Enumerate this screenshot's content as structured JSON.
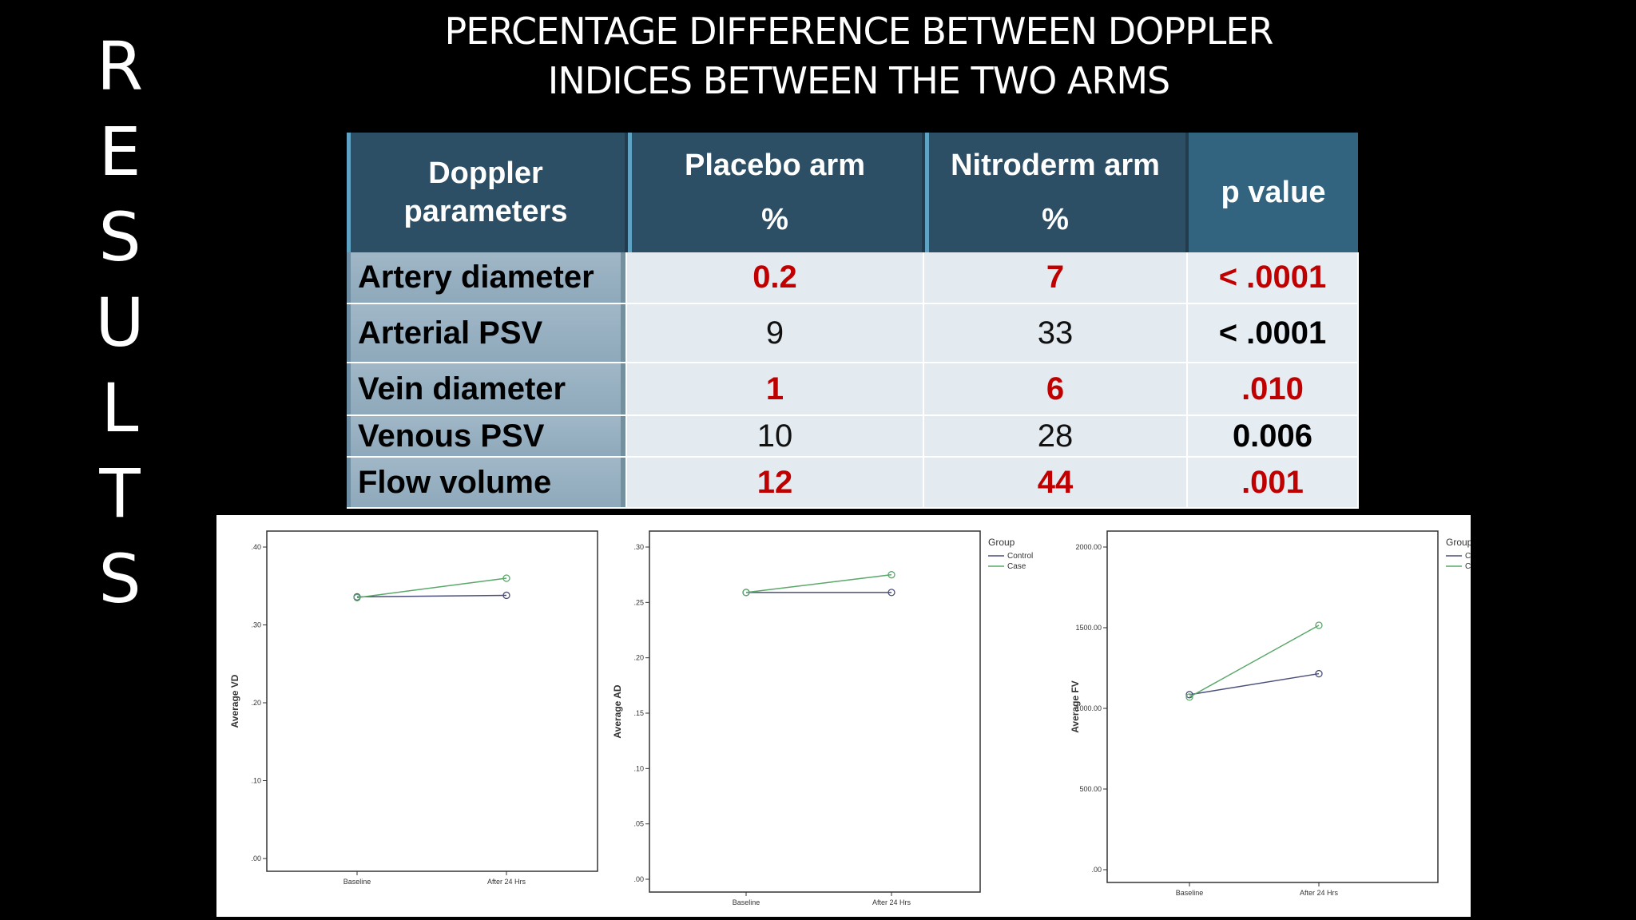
{
  "side_label": [
    "R",
    "E",
    "S",
    "U",
    "L",
    "T",
    "S"
  ],
  "title": [
    "PERCENTAGE DIFFERENCE BETWEEN DOPPLER",
    "INDICES BETWEEN THE TWO ARMS"
  ],
  "table": {
    "headers": {
      "param": [
        "Doppler",
        "parameters"
      ],
      "placebo": [
        "Placebo arm",
        "%"
      ],
      "nitro": [
        "Nitroderm arm",
        "%"
      ],
      "pvalue": "p value"
    },
    "rows": [
      {
        "param": "Artery diameter",
        "placebo": "0.2",
        "nitro": "7",
        "p": "< .0001",
        "highlight": true
      },
      {
        "param": "Arterial PSV",
        "placebo": "9",
        "nitro": "33",
        "p": "< .0001",
        "highlight": false
      },
      {
        "param": "Vein diameter",
        "placebo": "1",
        "nitro": "6",
        "p": ".010",
        "highlight": true
      },
      {
        "param": "Venous PSV",
        "placebo": "10",
        "nitro": "28",
        "p": "0.006",
        "highlight": false
      },
      {
        "param": "Flow volume",
        "placebo": "12",
        "nitro": "44",
        "p": ".001",
        "highlight": true
      }
    ],
    "highlight_color": "#c00000"
  },
  "chart_data": [
    {
      "type": "line",
      "ylabel": "Average VD",
      "categories": [
        "Baseline",
        "After 24 Hrs"
      ],
      "yticks": [
        ".00",
        ".10",
        ".20",
        ".30",
        ".40"
      ],
      "ylim": [
        0,
        0.4
      ],
      "legend": null,
      "series": [
        {
          "name": "Control",
          "color": "#4a4f7a",
          "values": [
            0.336,
            0.338
          ]
        },
        {
          "name": "Case",
          "color": "#5aa86a",
          "values": [
            0.335,
            0.36
          ]
        }
      ]
    },
    {
      "type": "line",
      "ylabel": "Average AD",
      "categories": [
        "Baseline",
        "After 24 Hrs"
      ],
      "yticks": [
        ".00",
        ".05",
        ".10",
        ".15",
        ".20",
        ".25",
        ".30"
      ],
      "ylim": [
        0,
        0.3
      ],
      "legend": {
        "title": "Group",
        "entries": [
          "Control",
          "Case"
        ]
      },
      "series": [
        {
          "name": "Control",
          "color": "#4a4f7a",
          "values": [
            0.259,
            0.259
          ]
        },
        {
          "name": "Case",
          "color": "#5aa86a",
          "values": [
            0.259,
            0.275
          ]
        }
      ]
    },
    {
      "type": "line",
      "ylabel": "Average FV",
      "categories": [
        "Baseline",
        "After 24 Hrs"
      ],
      "yticks": [
        ".00",
        "500.00",
        "1000.00",
        "1500.00",
        "2000.00"
      ],
      "ylim": [
        0,
        2000
      ],
      "legend": {
        "title": "Group",
        "entries": [
          "Control",
          "Case"
        ]
      },
      "series": [
        {
          "name": "Control",
          "color": "#4a4f7a",
          "values": [
            1085,
            1215
          ]
        },
        {
          "name": "Case",
          "color": "#5aa86a",
          "values": [
            1070,
            1515
          ]
        }
      ]
    }
  ]
}
